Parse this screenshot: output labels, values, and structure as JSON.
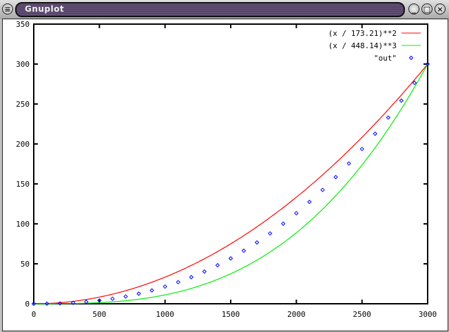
{
  "window": {
    "title": "Gnuplot",
    "menu_icon": "menu-icon",
    "minimize_icon": "minimize-icon",
    "maximize_icon": "maximize-icon",
    "close_icon": "close-icon"
  },
  "chart_data": {
    "type": "line",
    "title": "",
    "xlabel": "",
    "ylabel": "",
    "xlim": [
      0,
      3000
    ],
    "ylim": [
      0,
      350
    ],
    "xticks": [
      "0",
      "500",
      "1000",
      "1500",
      "2000",
      "2500",
      "3000"
    ],
    "yticks": [
      "0",
      "50",
      "100",
      "150",
      "200",
      "250",
      "300",
      "350"
    ],
    "grid": false,
    "legend_position": "top-right",
    "series": [
      {
        "name": "(x / 173.21)**2",
        "kind": "function",
        "divisor": 173.21,
        "power": 2,
        "color": "#ff0000"
      },
      {
        "name": "(x / 448.14)**3",
        "kind": "function",
        "divisor": 448.14,
        "power": 3,
        "color": "#00ee00"
      },
      {
        "name": "\"out\"",
        "kind": "points",
        "color": "#0000ff",
        "x": [
          0,
          100,
          200,
          300,
          400,
          500,
          600,
          700,
          800,
          900,
          1000,
          1100,
          1200,
          1300,
          1400,
          1500,
          1600,
          1700,
          1800,
          1900,
          2000,
          2100,
          2200,
          2300,
          2400,
          2500,
          2600,
          2700,
          2800,
          2900,
          3000
        ],
        "y": [
          0,
          0.1,
          0.5,
          1.2,
          2.4,
          4.1,
          6.3,
          9.1,
          12.6,
          16.7,
          21.5,
          27.0,
          33.3,
          40.3,
          48.2,
          56.8,
          66.4,
          76.7,
          88.0,
          100.2,
          113.3,
          127.5,
          142.5,
          158.5,
          175.6,
          193.7,
          212.8,
          233.0,
          254.2,
          276.5,
          300
        ]
      }
    ]
  }
}
